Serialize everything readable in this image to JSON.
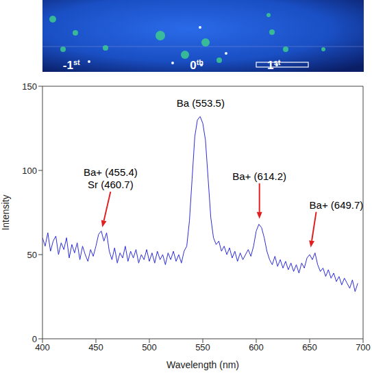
{
  "chart_data": {
    "type": "line",
    "image_labels": [
      "-1st",
      "0th",
      "1st"
    ],
    "xlabel": "Wavelength (nm)",
    "ylabel": "Intensity",
    "color": "#2b2bd9",
    "xlim": [
      400,
      700
    ],
    "xticks": [
      400,
      450,
      500,
      550,
      600,
      650,
      700
    ],
    "ylim": [
      0,
      150
    ],
    "yticks": [
      0,
      50,
      100,
      150
    ],
    "grid": false,
    "x": [
      400,
      402.5,
      405,
      407.5,
      410,
      412.5,
      415,
      417.5,
      420,
      422.5,
      425,
      427.5,
      430,
      432.5,
      435,
      437.5,
      440,
      442.5,
      445,
      447.5,
      450,
      452.5,
      455,
      457.5,
      460,
      462.5,
      465,
      467.5,
      470,
      472.5,
      475,
      477.5,
      480,
      482.5,
      485,
      487.5,
      490,
      492.5,
      495,
      497.5,
      500,
      502.5,
      505,
      507.5,
      510,
      512.5,
      515,
      517.5,
      520,
      522.5,
      525,
      527.5,
      530,
      532.5,
      535,
      537.5,
      540,
      542.5,
      545,
      547.5,
      550,
      552.5,
      555,
      557.5,
      560,
      562.5,
      565,
      567.5,
      570,
      572.5,
      575,
      577.5,
      580,
      582.5,
      585,
      587.5,
      590,
      592.5,
      595,
      597.5,
      600,
      602.5,
      605,
      607.5,
      610,
      612.5,
      615,
      617.5,
      620,
      622.5,
      625,
      627.5,
      630,
      632.5,
      635,
      637.5,
      640,
      642.5,
      645,
      647.5,
      650,
      652.5,
      655,
      657.5,
      660,
      662.5,
      665,
      667.5,
      670,
      672.5,
      675,
      677.5,
      680,
      682.5,
      685,
      687.5,
      690,
      692.5,
      695
    ],
    "values": [
      60,
      55,
      63,
      52,
      58,
      61,
      50,
      57,
      53,
      60,
      48,
      56,
      51,
      57,
      47,
      55,
      50,
      46,
      53,
      49,
      55,
      62,
      64,
      58,
      63,
      52,
      47,
      54,
      45,
      51,
      48,
      55,
      46,
      52,
      48,
      53,
      45,
      50,
      47,
      53,
      46,
      51,
      45,
      52,
      47,
      50,
      44,
      51,
      47,
      52,
      46,
      50,
      45,
      52,
      55,
      70,
      95,
      120,
      130,
      132,
      128,
      118,
      95,
      72,
      60,
      56,
      58,
      52,
      55,
      50,
      54,
      48,
      52,
      46,
      51,
      47,
      50,
      53,
      49,
      55,
      64,
      68,
      66,
      60,
      52,
      47,
      44,
      49,
      43,
      47,
      42,
      46,
      41,
      45,
      40,
      44,
      39,
      45,
      42,
      48,
      50,
      47,
      51,
      44,
      40,
      42,
      37,
      41,
      36,
      39,
      34,
      37,
      32,
      36,
      33,
      30,
      35,
      28,
      33
    ],
    "annotations": [
      {
        "text": [
          "Ba+ (455.4)",
          "Sr (460.7)"
        ],
        "x": 456,
        "y": 65,
        "arrow": true
      },
      {
        "text": [
          "Ba (553.5)"
        ],
        "x": 548,
        "y": 138,
        "arrow": false
      },
      {
        "text": [
          "Ba+ (614.2)"
        ],
        "x": 603,
        "y": 70,
        "arrow": true
      },
      {
        "text": [
          "Ba+ (649.7)"
        ],
        "x": 651,
        "y": 53,
        "arrow": true
      }
    ]
  }
}
